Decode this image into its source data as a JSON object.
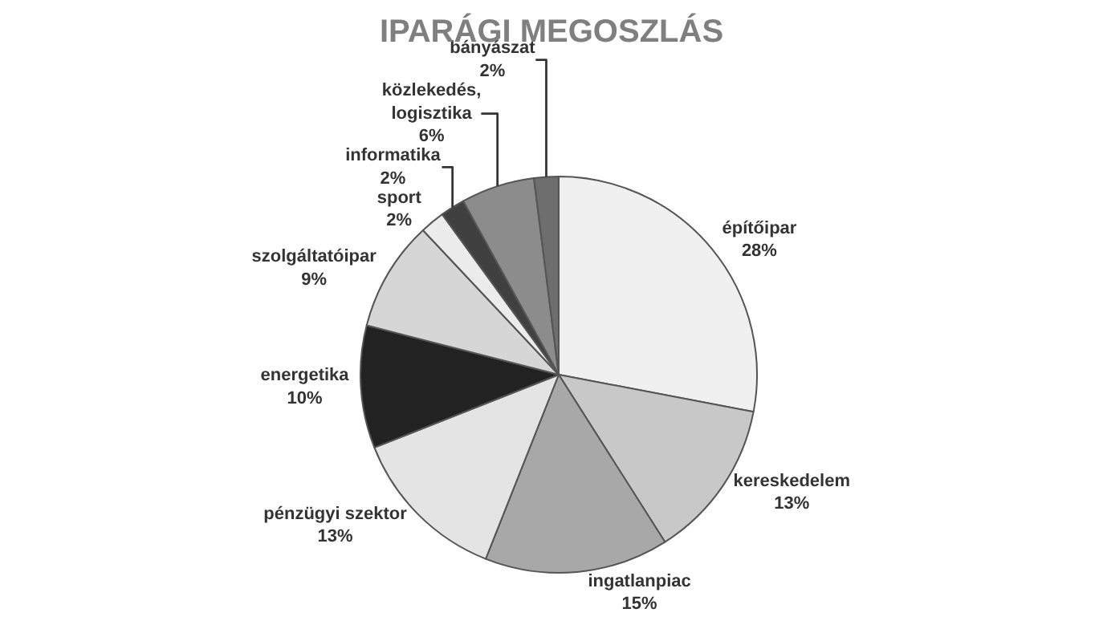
{
  "chart_data": {
    "type": "pie",
    "title": "IPARÁGI MEGOSZLÁS",
    "categories": [
      "építőipar",
      "kereskedelem",
      "ingatlanpiac",
      "pénzügyi szektor",
      "energetika",
      "szolgáltatóipar",
      "sport",
      "informatika",
      "közlekedés,\nlogisztika",
      "bányászat"
    ],
    "values": [
      28,
      13,
      15,
      13,
      10,
      9,
      2,
      2,
      6,
      2
    ],
    "value_labels": [
      "28%",
      "13%",
      "15%",
      "13%",
      "10%",
      "9%",
      "2%",
      "2%",
      "6%",
      "2%"
    ],
    "colors": [
      "#f0f0f0",
      "#c8c8c8",
      "#a8a8a8",
      "#e4e4e4",
      "#222222",
      "#d6d6d6",
      "#ececec",
      "#404040",
      "#8c8c8c",
      "#6e6e6e"
    ],
    "legend": false
  }
}
